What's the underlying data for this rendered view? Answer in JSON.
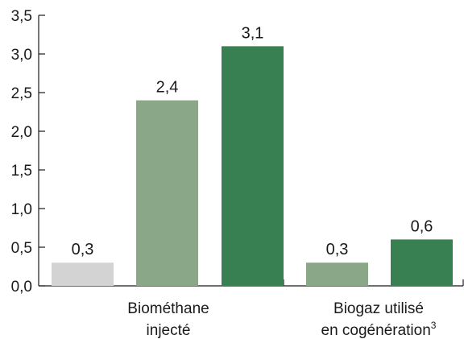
{
  "chart_data": {
    "type": "bar",
    "title": "",
    "xlabel": "",
    "ylabel": "",
    "ylim": [
      0,
      3.5
    ],
    "yticks": [
      "0,0",
      "0,5",
      "1,0",
      "1,5",
      "2,0",
      "2,5",
      "3,0",
      "3,5"
    ],
    "grid": false,
    "groups": [
      {
        "label_lines": [
          "Biométhane",
          "injecté"
        ],
        "superscript": "",
        "bars": [
          {
            "value": 0.3,
            "label": "0,3",
            "color": "#d3d3d3"
          },
          {
            "value": 2.4,
            "label": "2,4",
            "color": "#8aa888"
          },
          {
            "value": 3.1,
            "label": "3,1",
            "color": "#387f51"
          }
        ]
      },
      {
        "label_lines": [
          "Biogaz utilisé",
          "en cogénération"
        ],
        "superscript": "3",
        "bars": [
          {
            "value": 0.3,
            "label": "0,3",
            "color": "#8aa888"
          },
          {
            "value": 0.6,
            "label": "0,6",
            "color": "#387f51"
          }
        ]
      }
    ]
  }
}
